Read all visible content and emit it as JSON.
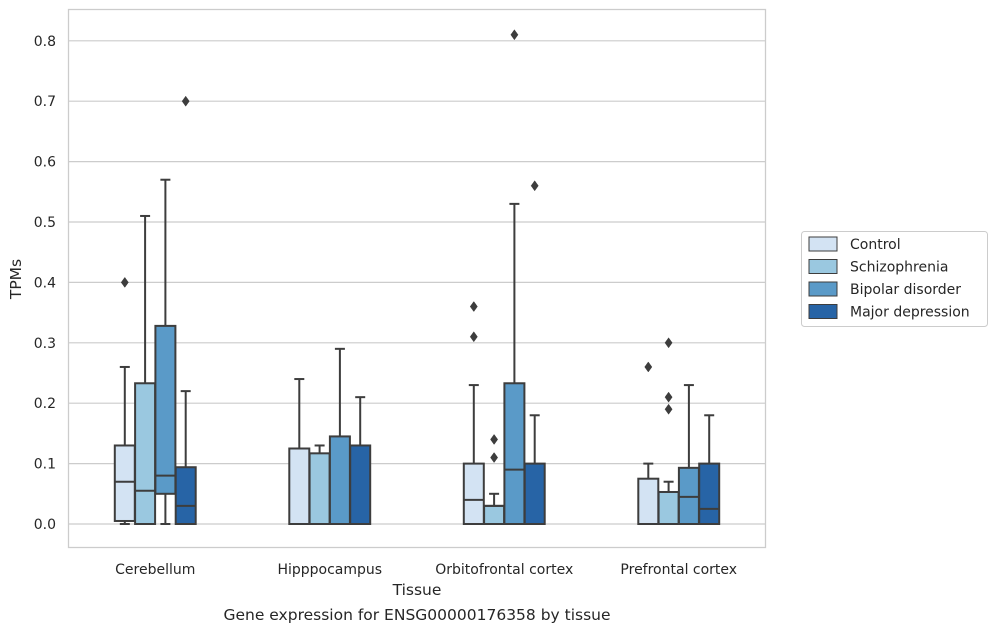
{
  "caption": "Gene expression for ENSG00000176358 by tissue",
  "chart_data": {
    "type": "box",
    "xlabel": "Tissue",
    "ylabel": "TPMs",
    "ylim": [
      -0.04,
      0.855
    ],
    "yticks": [
      0.0,
      0.1,
      0.2,
      0.3,
      0.4,
      0.5,
      0.6,
      0.7,
      0.8
    ],
    "ytick_labels": [
      "0.0",
      "0.1",
      "0.2",
      "0.3",
      "0.4",
      "0.5",
      "0.6",
      "0.7",
      "0.8"
    ],
    "grid": "horizontal",
    "legend_position": "right",
    "categories": [
      "Cerebellum",
      "Hipppocampus",
      "Orbitofrontal cortex",
      "Prefrontal cortex"
    ],
    "series": [
      {
        "name": "Control",
        "color": "#d3e3f3",
        "boxes": [
          {
            "min": 0.0,
            "q1": 0.005,
            "median": 0.07,
            "q3": 0.13,
            "max": 0.26,
            "outliers": [
              0.4
            ]
          },
          {
            "min": 0.0,
            "q1": 0.0,
            "median": 0.0,
            "q3": 0.125,
            "max": 0.24,
            "outliers": []
          },
          {
            "min": 0.0,
            "q1": 0.0,
            "median": 0.04,
            "q3": 0.1,
            "max": 0.23,
            "outliers": [
              0.31,
              0.36
            ]
          },
          {
            "min": 0.0,
            "q1": 0.0,
            "median": 0.0,
            "q3": 0.075,
            "max": 0.1,
            "outliers": [
              0.26
            ]
          }
        ]
      },
      {
        "name": "Schizophrenia",
        "color": "#9ac8e0",
        "boxes": [
          {
            "min": 0.0,
            "q1": 0.0,
            "median": 0.055,
            "q3": 0.233,
            "max": 0.51,
            "outliers": []
          },
          {
            "min": 0.0,
            "q1": 0.0,
            "median": 0.0,
            "q3": 0.117,
            "max": 0.13,
            "outliers": []
          },
          {
            "min": 0.0,
            "q1": 0.0,
            "median": 0.03,
            "q3": 0.03,
            "max": 0.05,
            "outliers": [
              0.11,
              0.14
            ]
          },
          {
            "min": 0.0,
            "q1": 0.0,
            "median": 0.0,
            "q3": 0.053,
            "max": 0.07,
            "outliers": [
              0.19,
              0.21,
              0.3
            ]
          }
        ]
      },
      {
        "name": "Bipolar disorder",
        "color": "#5a9ac8",
        "boxes": [
          {
            "min": 0.0,
            "q1": 0.05,
            "median": 0.08,
            "q3": 0.328,
            "max": 0.57,
            "outliers": []
          },
          {
            "min": 0.0,
            "q1": 0.0,
            "median": 0.0,
            "q3": 0.145,
            "max": 0.29,
            "outliers": []
          },
          {
            "min": 0.0,
            "q1": 0.0,
            "median": 0.09,
            "q3": 0.233,
            "max": 0.53,
            "outliers": [
              0.81
            ]
          },
          {
            "min": 0.0,
            "q1": 0.0,
            "median": 0.045,
            "q3": 0.093,
            "max": 0.23,
            "outliers": []
          }
        ]
      },
      {
        "name": "Major depression",
        "color": "#2764a6",
        "boxes": [
          {
            "min": 0.0,
            "q1": 0.0,
            "median": 0.03,
            "q3": 0.094,
            "max": 0.22,
            "outliers": [
              0.7
            ]
          },
          {
            "min": 0.0,
            "q1": 0.0,
            "median": 0.0,
            "q3": 0.13,
            "max": 0.21,
            "outliers": []
          },
          {
            "min": 0.0,
            "q1": 0.0,
            "median": 0.0,
            "q3": 0.1,
            "max": 0.18,
            "outliers": [
              0.56
            ]
          },
          {
            "min": 0.0,
            "q1": 0.0,
            "median": 0.025,
            "q3": 0.1,
            "max": 0.18,
            "outliers": []
          }
        ]
      }
    ]
  }
}
